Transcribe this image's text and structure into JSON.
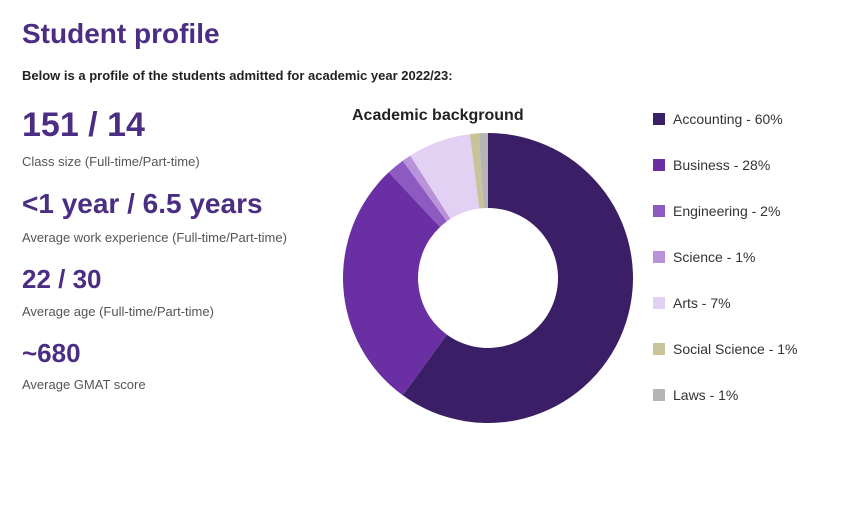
{
  "title": "Student profile",
  "subtitle": "Below is a profile of the students admitted for academic year 2022/23:",
  "title_color": "#4b2e83",
  "title_fontsize": 28,
  "subtitle_fontsize": 13,
  "stats": [
    {
      "value": "151 / 14",
      "label": "Class size (Full-time/Part-time)",
      "value_fontsize": 34,
      "size_class": "xl"
    },
    {
      "value": "<1 year / 6.5 years",
      "label": "Average work experience (Full-time/Part-time)",
      "value_fontsize": 28,
      "size_class": "lg"
    },
    {
      "value": "22 / 30",
      "label": "Average age (Full-time/Part-time)",
      "value_fontsize": 26,
      "size_class": "md"
    },
    {
      "value": "~680",
      "label": "Average GMAT score",
      "value_fontsize": 26,
      "size_class": "md"
    }
  ],
  "stat_value_color": "#4b2e83",
  "stat_label_color": "#555555",
  "chart": {
    "type": "donut",
    "title": "Academic background",
    "title_fontsize": 16,
    "background_color": "#ffffff",
    "outer_radius": 145,
    "inner_radius": 70,
    "start_angle_deg": -90,
    "direction": "clockwise",
    "slices": [
      {
        "label": "Accounting",
        "value": 60,
        "color": "#3b1f66"
      },
      {
        "label": "Business",
        "value": 28,
        "color": "#6a2fa3"
      },
      {
        "label": "Engineering",
        "value": 2,
        "color": "#8d5ac2"
      },
      {
        "label": "Science",
        "value": 1,
        "color": "#b893da"
      },
      {
        "label": "Arts",
        "value": 7,
        "color": "#e3d1f3"
      },
      {
        "label": "Social Science",
        "value": 1,
        "color": "#c9c29a"
      },
      {
        "label": "Laws",
        "value": 1,
        "color": "#b5b5b5"
      }
    ],
    "legend": {
      "position": "right",
      "fontsize": 14,
      "swatch_size": 12,
      "item_spacing": 30,
      "label_template": "{label} - {value}%"
    }
  }
}
